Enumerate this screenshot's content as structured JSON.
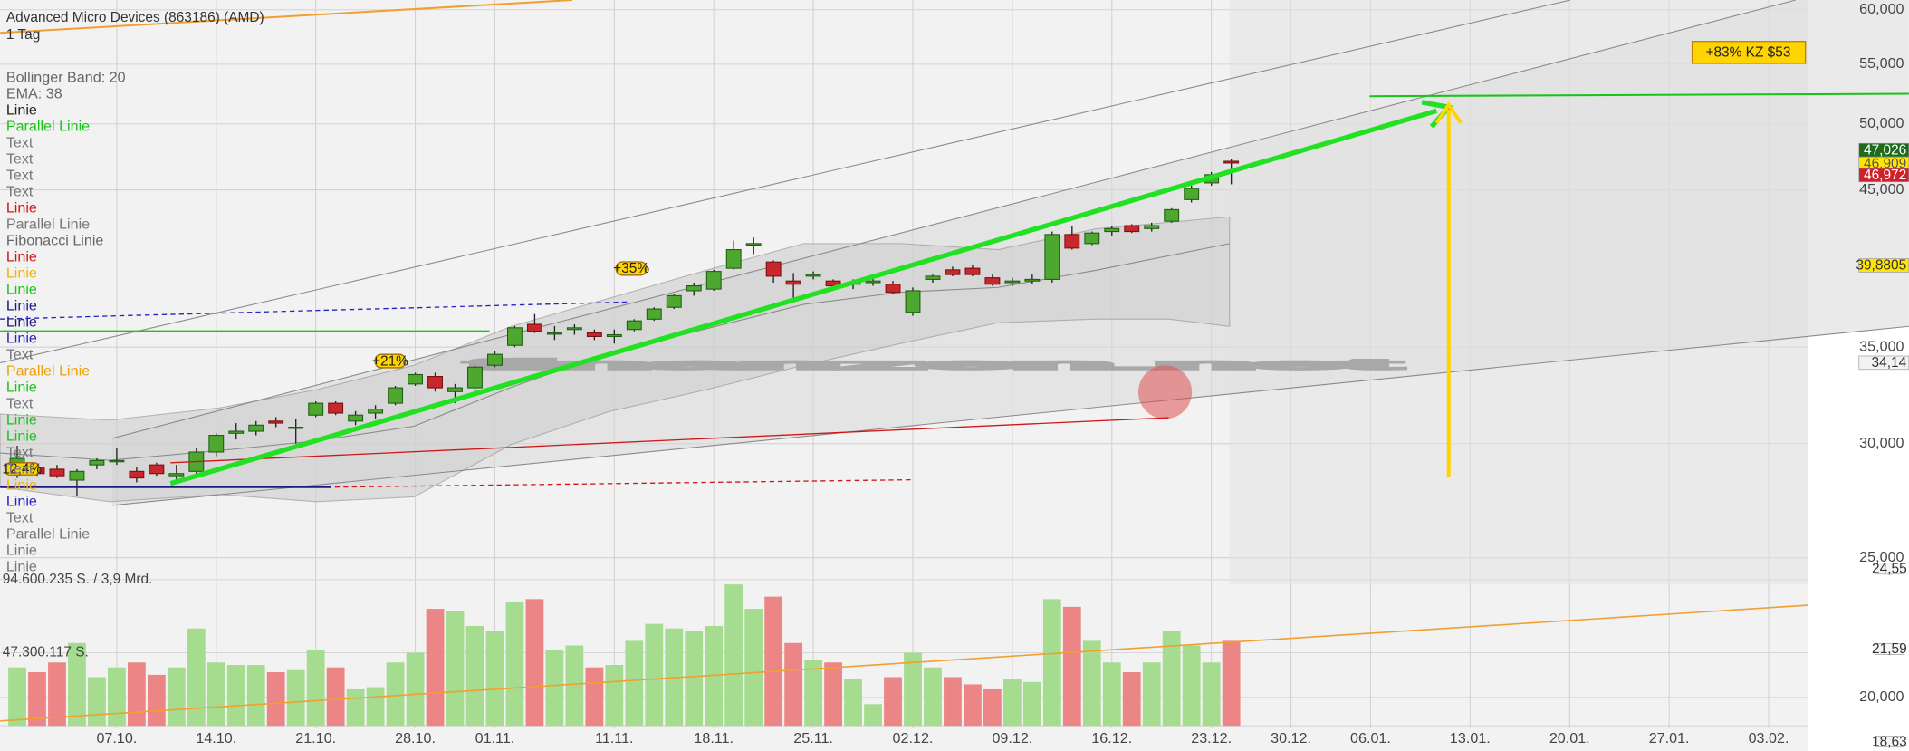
{
  "chart_data": {
    "type": "candlestick",
    "title": "Advanced Micro Devices (863186) (AMD)",
    "subtitle": "1 Tag",
    "log_scale": true,
    "grid": true,
    "up_color": "#4ea72e",
    "down_color": "#c8282d",
    "volume_up_color": "#a5dc8f",
    "volume_down_color": "#ec8585",
    "ylim": [
      18.35,
      60.94
    ],
    "yticks": [
      {
        "value": 60,
        "label": "60,000"
      },
      {
        "value": 55,
        "label": "55,000"
      },
      {
        "value": 50,
        "label": "50,000"
      },
      {
        "value": 45,
        "label": "45,000"
      },
      {
        "value": 35,
        "label": "35,000"
      },
      {
        "value": 30,
        "label": "30,000"
      },
      {
        "value": 25,
        "label": "25,000"
      },
      {
        "value": 20,
        "label": "20,000"
      }
    ],
    "xlim": [
      -0.86,
      89.97
    ],
    "xticks": [
      {
        "value": 5,
        "label": "07.10."
      },
      {
        "value": 10,
        "label": "14.10."
      },
      {
        "value": 15,
        "label": "21.10."
      },
      {
        "value": 20,
        "label": "28.10."
      },
      {
        "value": 24,
        "label": "01.11."
      },
      {
        "value": 30,
        "label": "11.11."
      },
      {
        "value": 35,
        "label": "18.11."
      },
      {
        "value": 40,
        "label": "25.11."
      },
      {
        "value": 45,
        "label": "02.12."
      },
      {
        "value": 50,
        "label": "09.12."
      },
      {
        "value": 55,
        "label": "16.12."
      },
      {
        "value": 60,
        "label": "23.12."
      },
      {
        "value": 64,
        "label": "30.12."
      },
      {
        "value": 68,
        "label": "06.01."
      },
      {
        "value": 73,
        "label": "13.01."
      },
      {
        "value": 78,
        "label": "20.01."
      },
      {
        "value": 83,
        "label": "27.01."
      },
      {
        "value": 88,
        "label": "03.02."
      }
    ],
    "open": [
      29.0,
      28.9,
      28.8,
      28.3,
      29.0,
      29.2,
      28.7,
      29.0,
      28.5,
      28.7,
      29.6,
      30.5,
      30.6,
      31.1,
      30.8,
      31.4,
      32.0,
      31.1,
      31.5,
      32.0,
      33.0,
      33.4,
      32.6,
      32.8,
      34.0,
      35.1,
      36.3,
      35.8,
      36.0,
      35.8,
      35.6,
      36.0,
      36.6,
      37.3,
      38.3,
      38.4,
      39.7,
      41.2,
      40.1,
      38.9,
      39.2,
      38.9,
      38.7,
      38.8,
      38.7,
      37.0,
      39.0,
      39.6,
      39.7,
      39.1,
      38.8,
      38.9,
      39.0,
      41.9,
      41.3,
      42.1,
      42.5,
      42.3,
      42.8,
      44.3,
      45.5,
      47.1
    ],
    "high": [
      29.9,
      29.0,
      29.0,
      28.8,
      29.3,
      29.8,
      28.9,
      29.1,
      29.0,
      29.8,
      30.5,
      31.0,
      31.1,
      31.3,
      31.2,
      32.1,
      32.1,
      31.6,
      31.9,
      32.9,
      33.6,
      33.6,
      33.0,
      34.0,
      34.8,
      36.2,
      36.9,
      36.2,
      36.3,
      36.0,
      36.0,
      36.6,
      37.3,
      38.1,
      38.8,
      39.6,
      41.5,
      41.7,
      40.2,
      39.4,
      39.5,
      39.0,
      39.0,
      39.1,
      38.9,
      38.5,
      39.3,
      39.8,
      39.9,
      39.3,
      39.1,
      39.3,
      42.1,
      42.5,
      42.1,
      42.5,
      42.6,
      42.7,
      43.7,
      45.3,
      46.3,
      47.3
    ],
    "low": [
      28.4,
      28.5,
      28.4,
      27.6,
      28.8,
      29.0,
      28.2,
      28.5,
      28.2,
      28.6,
      29.4,
      30.2,
      30.4,
      30.8,
      30.0,
      31.3,
      31.4,
      30.9,
      31.2,
      31.9,
      32.9,
      32.6,
      32.0,
      32.5,
      33.9,
      35.0,
      35.8,
      35.4,
      35.7,
      35.4,
      35.2,
      35.9,
      36.5,
      37.2,
      38.0,
      38.3,
      39.6,
      40.6,
      38.8,
      37.6,
      39.0,
      38.5,
      38.4,
      38.6,
      38.1,
      36.8,
      38.8,
      39.2,
      39.2,
      38.6,
      38.6,
      38.7,
      38.8,
      40.9,
      41.2,
      41.8,
      42.0,
      42.1,
      42.7,
      44.1,
      45.3,
      45.4
    ],
    "close": [
      29.3,
      28.6,
      28.5,
      28.7,
      29.2,
      29.2,
      28.4,
      28.6,
      28.6,
      29.6,
      30.4,
      30.6,
      30.9,
      31.0,
      30.8,
      32.0,
      31.5,
      31.4,
      31.7,
      32.8,
      33.5,
      32.8,
      32.8,
      33.9,
      34.6,
      36.1,
      35.9,
      35.8,
      36.1,
      35.6,
      35.7,
      36.5,
      37.2,
      38.0,
      38.6,
      39.5,
      40.9,
      41.3,
      39.2,
      38.7,
      39.3,
      38.6,
      38.8,
      38.9,
      38.2,
      38.3,
      39.2,
      39.3,
      39.3,
      38.7,
      38.9,
      39.0,
      41.9,
      41.0,
      42.0,
      42.3,
      42.1,
      42.5,
      43.6,
      45.1,
      46.1,
      46.97
    ],
    "volume": [
      37800000,
      34700000,
      41000000,
      53600000,
      31500000,
      37800000,
      41000000,
      33000000,
      37800000,
      63000000,
      41000000,
      39400000,
      39400000,
      34700000,
      36000000,
      49000000,
      37800000,
      23600000,
      25000000,
      41000000,
      47300000,
      75700000,
      74000000,
      64600000,
      61500000,
      80400000,
      82000000,
      49000000,
      52000000,
      37800000,
      39400000,
      55000000,
      66000000,
      63000000,
      61500000,
      64600000,
      91500000,
      75700000,
      83600000,
      53600000,
      42600000,
      41000000,
      30000000,
      14000000,
      31500000,
      47300000,
      37800000,
      31500000,
      26800000,
      23600000,
      30000000,
      28400000,
      82000000,
      77000000,
      55000000,
      41000000,
      34700000,
      41000000,
      61500000,
      52000000,
      41000000,
      55000000
    ],
    "volume_ylim": [
      0,
      94600235
    ],
    "volume_ticks": [
      {
        "value": 94600235,
        "label": "94.600.235 S. / 3,9 Mrd."
      },
      {
        "value": 47300117,
        "label": "47.300.117 S."
      }
    ],
    "price_labels": [
      {
        "value": 47.026,
        "label": "47,026",
        "color": "#1e6b1e",
        "text_color": "#ffffff"
      },
      {
        "value": 46.909,
        "label": "46,909",
        "color": "#ffe600",
        "text_color": "#555555"
      },
      {
        "value": 46.972,
        "label": "46,972",
        "color": "#d0202a",
        "text_color": "#ffffff"
      },
      {
        "value": 39.8805,
        "label": "39,8805",
        "color": "#ffe600",
        "text_color": "#333333"
      },
      {
        "value": 34.14,
        "label": "34,14",
        "color": "#f3f3f3",
        "text_color": "#333333"
      }
    ],
    "volume_side_labels": [
      "24,55",
      "21,59",
      "18,63"
    ],
    "annotations": [
      {
        "text": "+83% KZ $53",
        "value": 53
      },
      {
        "text": "+35%"
      },
      {
        "text": "+21%"
      },
      {
        "text": "12,4%"
      }
    ],
    "watermark": "finanzen.net",
    "legend": [
      {
        "text": "Bollinger Band: 20",
        "color": "#666666"
      },
      {
        "text": "EMA: 38",
        "color": "#666666"
      },
      {
        "text": "Linie",
        "color": "#222222"
      },
      {
        "text": "Parallel Linie",
        "color": "#19c419"
      },
      {
        "text": "Text",
        "color": "#777777"
      },
      {
        "text": "Text",
        "color": "#777777"
      },
      {
        "text": "Text",
        "color": "#777777"
      },
      {
        "text": "Text",
        "color": "#777777"
      },
      {
        "text": "Linie",
        "color": "#d01818"
      },
      {
        "text": "Parallel Linie",
        "color": "#777777"
      },
      {
        "text": "Fibonacci Linie",
        "color": "#666666"
      },
      {
        "text": "Linie",
        "color": "#d01818"
      },
      {
        "text": "Linie",
        "color": "#f0b400"
      },
      {
        "text": "Linie",
        "color": "#19c419"
      },
      {
        "text": "Linie",
        "color": "#1a1a80"
      },
      {
        "text": "Linie",
        "color": "#1a1a80"
      },
      {
        "text": "Linie",
        "color": "#2525c0"
      },
      {
        "text": "Text",
        "color": "#777777"
      },
      {
        "text": "Parallel Linie",
        "color": "#f0a000"
      },
      {
        "text": "Linie",
        "color": "#19c419"
      },
      {
        "text": "Text",
        "color": "#777777"
      },
      {
        "text": "Linie",
        "color": "#19c419"
      },
      {
        "text": "Linie",
        "color": "#19c419"
      },
      {
        "text": "Text",
        "color": "#777777"
      },
      {
        "text": "Text",
        "color": "#777777"
      },
      {
        "text": "Linie",
        "color": "#f0b400"
      },
      {
        "text": "Linie",
        "color": "#2525c0"
      },
      {
        "text": "Text",
        "color": "#777777"
      },
      {
        "text": "Parallel Linie",
        "color": "#777777"
      },
      {
        "text": "Linie",
        "color": "#777777"
      },
      {
        "text": "Linie",
        "color": "#777777"
      }
    ]
  }
}
